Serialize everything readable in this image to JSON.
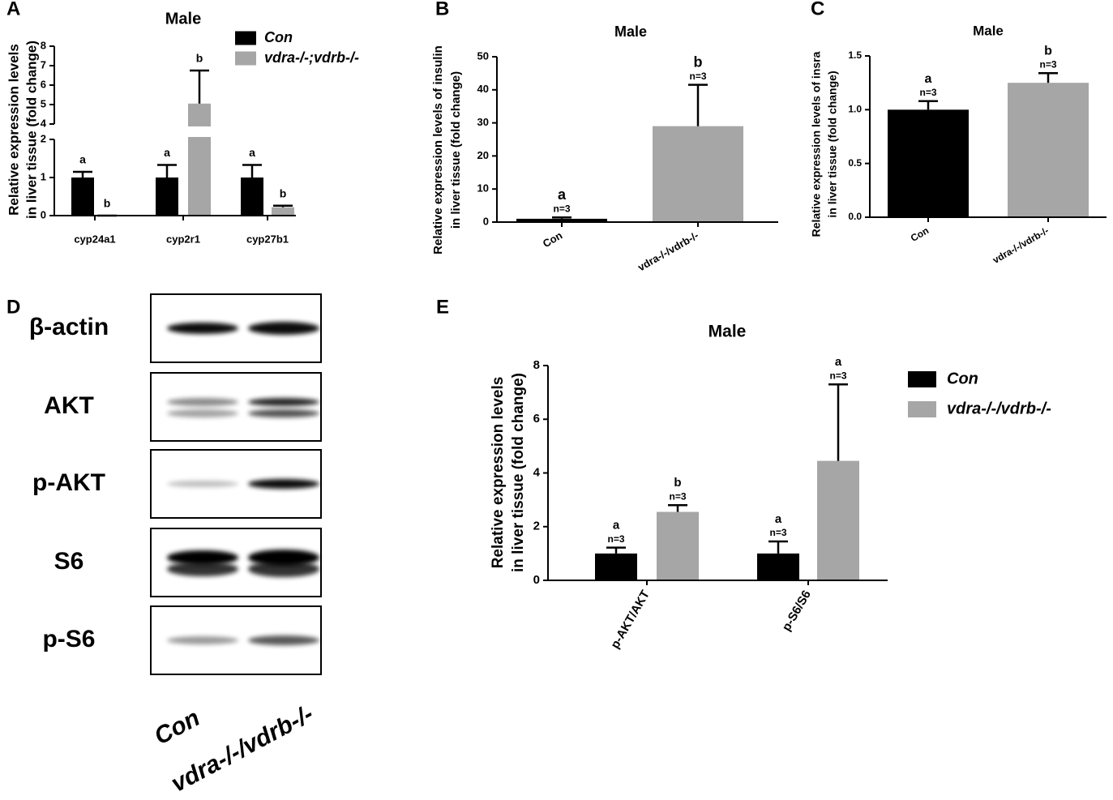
{
  "chart_data": [
    {
      "panel": "A",
      "type": "bar",
      "title": "Male",
      "ylabel": [
        "Relative expression levels",
        "in liver tissue (fold change)"
      ],
      "categories": [
        "cyp24a1",
        "cyp2r1",
        "cyp27b1"
      ],
      "series": [
        {
          "name": "Con",
          "color": "#000000",
          "values": [
            1,
            1,
            1
          ],
          "errors": [
            0.15,
            0.33,
            0.33
          ],
          "letters": [
            "a",
            "a",
            "a"
          ]
        },
        {
          "name": "vdra-/-;vdrb-/-",
          "color": "#a6a6a6",
          "values": [
            0,
            5.05,
            0.22
          ],
          "errors": [
            0,
            1.7,
            0.04
          ],
          "letters": [
            "b",
            "b",
            "b"
          ]
        }
      ],
      "ylim": [
        0,
        8
      ],
      "ybreak": [
        2,
        4
      ],
      "yticks": [
        0,
        1,
        2,
        4,
        5,
        6,
        7,
        8
      ],
      "legend": "top-right"
    },
    {
      "panel": "B",
      "type": "bar",
      "title": "Male",
      "ylabel": [
        "Relative expression levels of insulin",
        "in liver tissue (fold change)"
      ],
      "categories": [
        "Con",
        "vdra-/-/vdrb-/-"
      ],
      "values": [
        1,
        29
      ],
      "errors": [
        0.4,
        12.5
      ],
      "colors": [
        "#000000",
        "#a6a6a6"
      ],
      "letters": [
        "a",
        "b"
      ],
      "n_labels": [
        "n=3",
        "n=3"
      ],
      "ylim": [
        0,
        50
      ],
      "yticks": [
        0,
        10,
        20,
        30,
        40,
        50
      ]
    },
    {
      "panel": "C",
      "type": "bar",
      "title": "Male",
      "ylabel": [
        "Relative expression levels of insra",
        "in liver tissue (fold change)"
      ],
      "categories": [
        "Con",
        "vdra-/-/vdrb-/-"
      ],
      "values": [
        1.0,
        1.25
      ],
      "errors": [
        0.08,
        0.09
      ],
      "colors": [
        "#000000",
        "#a6a6a6"
      ],
      "letters": [
        "a",
        "b"
      ],
      "n_labels": [
        "n=3",
        "n=3"
      ],
      "ylim": [
        0,
        1.5
      ],
      "yticks": [
        {
          "value": 0,
          "label": "0.0"
        },
        0.5,
        {
          "value": 1,
          "label": "1.0"
        },
        1.5
      ]
    },
    {
      "panel": "E",
      "type": "bar",
      "title": "Male",
      "ylabel": [
        "Relative expression levels",
        "in liver tissue (fold change)"
      ],
      "categories": [
        "p-AKT/AKT",
        "p-S6/S6"
      ],
      "series": [
        {
          "name": "Con",
          "color": "#000000",
          "values": [
            1.0,
            1.0
          ],
          "errors": [
            0.22,
            0.45
          ],
          "letters": [
            "a",
            "a"
          ],
          "n_labels": [
            "n=3",
            "n=3"
          ]
        },
        {
          "name": "vdra-/-/vdrb-/-",
          "color": "#a6a6a6",
          "values": [
            2.55,
            4.45
          ],
          "errors": [
            0.25,
            2.85
          ],
          "letters": [
            "b",
            "a"
          ],
          "n_labels": [
            "n=3",
            "n=3"
          ]
        }
      ],
      "ylim": [
        0,
        8
      ],
      "yticks": [
        0,
        2,
        4,
        6,
        8
      ],
      "legend": "right"
    }
  ],
  "blot": {
    "panel": "D",
    "rows": [
      "β-actin",
      "AKT",
      "p-AKT",
      "S6",
      "p-S6"
    ],
    "lanes": [
      "Con",
      "vdra-/-/vdrb-/-"
    ]
  }
}
